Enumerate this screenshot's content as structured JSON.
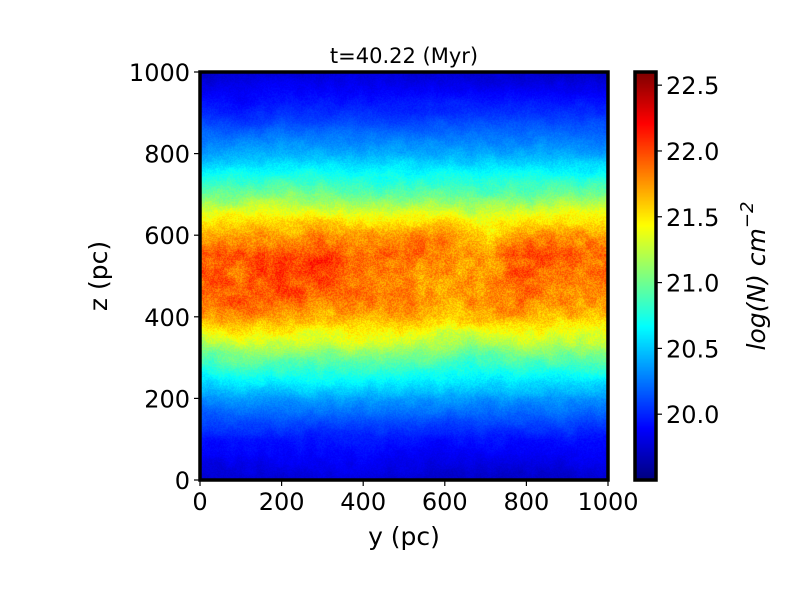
{
  "chart_data": {
    "type": "heatmap",
    "title": "t=40.22 (Myr)",
    "xlabel": "y (pc)",
    "ylabel": "z (pc)",
    "xlim": [
      0,
      1000
    ],
    "ylim": [
      0,
      1000
    ],
    "xticks": [
      "0",
      "200",
      "400",
      "600",
      "800",
      "1000"
    ],
    "yticks": [
      "0",
      "200",
      "400",
      "600",
      "800",
      "1000"
    ],
    "colormap": "jet",
    "colorbar": {
      "label": "log(N) cm^-2",
      "label_main": "log(N) cm",
      "label_exp": "−2",
      "range": [
        19.5,
        22.6
      ],
      "ticks": [
        "20.0",
        "20.5",
        "21.0",
        "21.5",
        "22.0",
        "22.5"
      ]
    },
    "mean_profile": {
      "z": [
        0,
        100,
        200,
        300,
        400,
        450,
        500,
        550,
        600,
        650,
        700,
        800,
        900,
        1000
      ],
      "logN": [
        19.75,
        19.95,
        20.35,
        20.95,
        21.65,
        21.85,
        21.9,
        21.95,
        21.75,
        21.4,
        21.0,
        20.4,
        20.0,
        19.75
      ]
    }
  }
}
